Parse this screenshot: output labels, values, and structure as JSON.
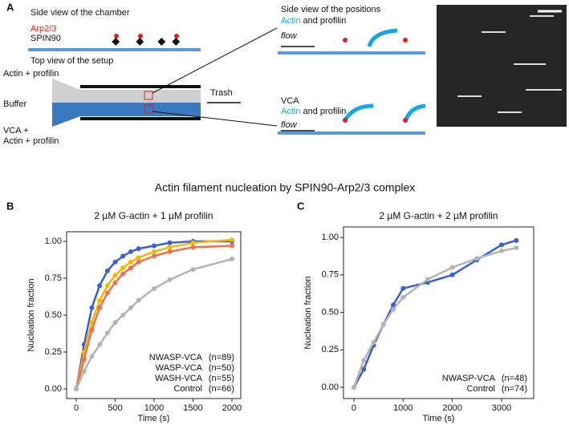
{
  "panel_a": {
    "label": "A",
    "chamber_title": "Side view of the chamber",
    "arp": "Arp2/3",
    "spin": "SPIN90",
    "setup_title": "Top view of the setup",
    "inlet_top": "Actin + profilin",
    "inlet_mid": "Buffer",
    "inlet_bottom_1": "VCA +",
    "inlet_bottom_2": "Actin + profilin",
    "trash": "Trash",
    "positions_title": "Side view of the positions",
    "actin_word": "Actin",
    "and_profilin": " and profilin",
    "flow": "flow",
    "vca": "VCA"
  },
  "figure_title": "Actin filament nucleation by SPIN90-Arp2/3 complex",
  "chart_data": [
    {
      "type": "line",
      "panel": "B",
      "title": "2 µM G-actin + 1 µM profilin",
      "x_label": "Time (s)",
      "y_label": "Nucleation fraction",
      "x": [
        0,
        100,
        200,
        300,
        400,
        500,
        600,
        700,
        800,
        1000,
        1200,
        1500,
        2000
      ],
      "series": [
        {
          "name": "NWASP-VCA",
          "n": "(n=89)",
          "color": "#3a5fd0",
          "values": [
            0,
            0.3,
            0.55,
            0.7,
            0.8,
            0.86,
            0.9,
            0.93,
            0.95,
            0.97,
            0.99,
            1.0,
            1.0
          ]
        },
        {
          "name": "WASP-VCA",
          "n": "(n=50)",
          "color": "#f5b800",
          "values": [
            0,
            0.25,
            0.45,
            0.6,
            0.7,
            0.77,
            0.82,
            0.86,
            0.89,
            0.93,
            0.96,
            0.99,
            1.01
          ]
        },
        {
          "name": "WASH-VCA",
          "n": "(n=55)",
          "color": "#f07050",
          "values": [
            0,
            0.2,
            0.4,
            0.55,
            0.65,
            0.72,
            0.78,
            0.82,
            0.86,
            0.9,
            0.93,
            0.96,
            0.97
          ]
        },
        {
          "name": "Control",
          "n": "(n=66)",
          "color": "#b4b4b4",
          "values": [
            0,
            0.12,
            0.22,
            0.3,
            0.38,
            0.45,
            0.5,
            0.55,
            0.6,
            0.68,
            0.74,
            0.81,
            0.88
          ]
        }
      ],
      "xlim": [
        -124,
        2113
      ],
      "xticks": [
        0,
        500,
        1000,
        1500,
        2000
      ],
      "ylim": [
        -0.065,
        1.065
      ],
      "yticks": [
        {
          "value": 0,
          "label": "0.00"
        },
        {
          "value": 0.25,
          "label": "0.25"
        },
        {
          "value": 0.5,
          "label": "0.50"
        },
        {
          "value": 0.75,
          "label": "0.75"
        },
        {
          "value": 1,
          "label": "1.00"
        }
      ]
    },
    {
      "type": "line",
      "panel": "C",
      "title": "2 µM G-actin + 2 µM profilin",
      "x_label": "Time (s)",
      "y_label": "Nucleation fraction",
      "x": [
        0,
        200,
        400,
        600,
        800,
        1000,
        1500,
        2000,
        2500,
        3000,
        3300
      ],
      "series": [
        {
          "name": "NWASP-VCA",
          "n": "(n=48)",
          "color": "#3a5fd0",
          "values": [
            0,
            0.12,
            0.28,
            0.42,
            0.55,
            0.66,
            0.7,
            0.75,
            0.85,
            0.95,
            0.98
          ]
        },
        {
          "name": "Control",
          "n": "(n=74)",
          "color": "#b4b4b4",
          "values": [
            0,
            0.18,
            0.3,
            0.42,
            0.52,
            0.6,
            0.72,
            0.8,
            0.86,
            0.91,
            0.93
          ]
        }
      ],
      "xlim": [
        -212,
        3653
      ],
      "xticks": [
        0,
        1000,
        2000,
        3000
      ],
      "ylim": [
        -0.075,
        1.07
      ],
      "yticks": [
        {
          "value": 0,
          "label": "0.00"
        },
        {
          "value": 0.25,
          "label": "0.25"
        },
        {
          "value": 0.5,
          "label": "0.50"
        },
        {
          "value": 0.75,
          "label": "0.75"
        },
        {
          "value": 1,
          "label": "1.00"
        }
      ]
    }
  ]
}
